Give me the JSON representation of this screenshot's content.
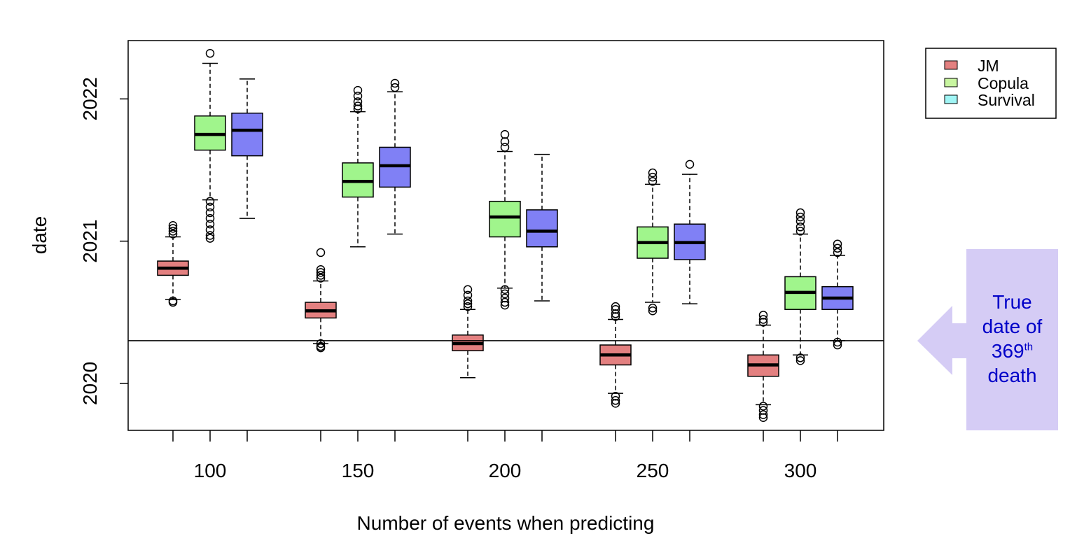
{
  "chart_data": {
    "type": "box",
    "xlabel": "Number of events when predicting",
    "ylabel": "date",
    "ylim": [
      2019.67,
      2022.41
    ],
    "y_ticks": [
      "2020",
      "2021",
      "2022"
    ],
    "categories": [
      "100",
      "150",
      "200",
      "250",
      "300"
    ],
    "reference_line": {
      "y": 2020.3
    },
    "legend": {
      "position": "top-right",
      "entries": [
        "JM",
        "Copula",
        "Survival"
      ]
    },
    "series": [
      {
        "name": "JM",
        "color": "#e38080",
        "boxes": [
          {
            "whisker_low": 2020.59,
            "q1": 2020.76,
            "median": 2020.81,
            "q3": 2020.86,
            "whisker_high": 2021.03,
            "outliers": [
              2020.58,
              2020.57,
              2021.05,
              2021.07,
              2021.09,
              2021.11
            ]
          },
          {
            "whisker_low": 2020.28,
            "q1": 2020.46,
            "median": 2020.51,
            "q3": 2020.57,
            "whisker_high": 2020.72,
            "outliers": [
              2020.28,
              2020.26,
              2020.25,
              2020.74,
              2020.76,
              2020.78,
              2020.8,
              2020.92
            ]
          },
          {
            "whisker_low": 2020.04,
            "q1": 2020.23,
            "median": 2020.28,
            "q3": 2020.34,
            "whisker_high": 2020.52,
            "outliers": [
              2020.54,
              2020.56,
              2020.58,
              2020.62,
              2020.66
            ]
          },
          {
            "whisker_low": 2019.93,
            "q1": 2020.13,
            "median": 2020.2,
            "q3": 2020.27,
            "whisker_high": 2020.45,
            "outliers": [
              2019.91,
              2019.88,
              2019.86,
              2020.47,
              2020.49,
              2020.52,
              2020.54
            ]
          },
          {
            "whisker_low": 2019.85,
            "q1": 2020.05,
            "median": 2020.13,
            "q3": 2020.2,
            "whisker_high": 2020.41,
            "outliers": [
              2019.84,
              2019.81,
              2019.78,
              2019.76,
              2020.43,
              2020.45,
              2020.48
            ]
          }
        ]
      },
      {
        "name": "Copula",
        "color": "#a0f58c",
        "boxes": [
          {
            "whisker_low": 2021.29,
            "q1": 2021.64,
            "median": 2021.75,
            "q3": 2021.88,
            "whisker_high": 2022.25,
            "outliers": [
              2021.28,
              2021.24,
              2021.2,
              2021.16,
              2021.12,
              2021.08,
              2021.04,
              2021.02,
              2022.32
            ]
          },
          {
            "whisker_low": 2020.96,
            "q1": 2021.31,
            "median": 2021.42,
            "q3": 2021.55,
            "whisker_high": 2021.91,
            "outliers": [
              2021.93,
              2021.95,
              2021.98,
              2022.02,
              2022.06
            ]
          },
          {
            "whisker_low": 2020.67,
            "q1": 2021.03,
            "median": 2021.17,
            "q3": 2021.28,
            "whisker_high": 2021.63,
            "outliers": [
              2020.66,
              2020.63,
              2020.6,
              2020.57,
              2020.55,
              2021.66,
              2021.7,
              2021.75
            ]
          },
          {
            "whisker_low": 2020.57,
            "q1": 2020.88,
            "median": 2020.99,
            "q3": 2021.1,
            "whisker_high": 2021.4,
            "outliers": [
              2020.53,
              2020.51,
              2021.42,
              2021.45,
              2021.48
            ]
          },
          {
            "whisker_low": 2020.2,
            "q1": 2020.52,
            "median": 2020.64,
            "q3": 2020.75,
            "whisker_high": 2021.05,
            "outliers": [
              2020.18,
              2020.16,
              2021.07,
              2021.1,
              2021.14,
              2021.17,
              2021.2
            ]
          }
        ]
      },
      {
        "name": "Survival",
        "color": "#8080f5",
        "boxes": [
          {
            "whisker_low": 2021.16,
            "q1": 2021.6,
            "median": 2021.78,
            "q3": 2021.9,
            "whisker_high": 2022.14,
            "outliers": []
          },
          {
            "whisker_low": 2021.05,
            "q1": 2021.38,
            "median": 2021.53,
            "q3": 2021.66,
            "whisker_high": 2022.05,
            "outliers": [
              2022.08,
              2022.11
            ]
          },
          {
            "whisker_low": 2020.58,
            "q1": 2020.96,
            "median": 2021.07,
            "q3": 2021.22,
            "whisker_high": 2021.61,
            "outliers": []
          },
          {
            "whisker_low": 2020.56,
            "q1": 2020.87,
            "median": 2020.99,
            "q3": 2021.12,
            "whisker_high": 2021.47,
            "outliers": [
              2021.54
            ]
          },
          {
            "whisker_low": 2020.3,
            "q1": 2020.52,
            "median": 2020.6,
            "q3": 2020.68,
            "whisker_high": 2020.9,
            "outliers": [
              2020.29,
              2020.27,
              2020.92,
              2020.95,
              2020.98
            ]
          }
        ]
      }
    ]
  },
  "annotation": {
    "text_lines": [
      "True",
      "date of",
      "369",
      "death"
    ],
    "superscript": "th",
    "color": "#0000c8",
    "box_color": "#d5ccf5"
  }
}
